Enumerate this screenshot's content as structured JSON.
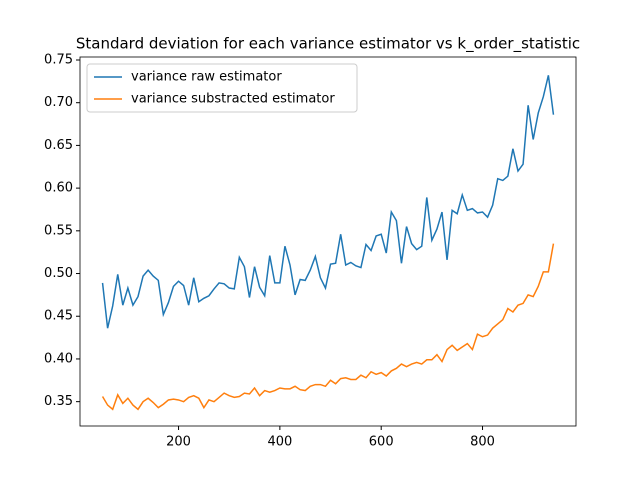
{
  "chart_data": {
    "type": "line",
    "title": "Standard deviation for each variance estimator vs k_order_statistic",
    "x": [
      50,
      60,
      70,
      80,
      90,
      100,
      110,
      120,
      130,
      140,
      150,
      160,
      170,
      180,
      190,
      200,
      210,
      220,
      230,
      240,
      250,
      260,
      270,
      280,
      290,
      300,
      310,
      320,
      330,
      340,
      350,
      360,
      370,
      380,
      390,
      400,
      410,
      420,
      430,
      440,
      450,
      460,
      470,
      480,
      490,
      500,
      510,
      520,
      530,
      540,
      550,
      560,
      570,
      580,
      590,
      600,
      610,
      620,
      630,
      640,
      650,
      660,
      670,
      680,
      690,
      700,
      710,
      720,
      730,
      740,
      750,
      760,
      770,
      780,
      790,
      800,
      810,
      820,
      830,
      840,
      850,
      860,
      870,
      880,
      890,
      900,
      910,
      920,
      930,
      940
    ],
    "series": [
      {
        "name": "variance raw estimator",
        "color": "#1f77b4",
        "values": [
          0.489,
          0.436,
          0.462,
          0.499,
          0.463,
          0.483,
          0.463,
          0.473,
          0.497,
          0.504,
          0.497,
          0.492,
          0.452,
          0.466,
          0.485,
          0.491,
          0.486,
          0.463,
          0.495,
          0.467,
          0.471,
          0.474,
          0.482,
          0.489,
          0.488,
          0.483,
          0.482,
          0.519,
          0.508,
          0.472,
          0.508,
          0.484,
          0.474,
          0.521,
          0.489,
          0.489,
          0.532,
          0.51,
          0.475,
          0.493,
          0.492,
          0.504,
          0.52,
          0.495,
          0.483,
          0.511,
          0.512,
          0.546,
          0.51,
          0.513,
          0.509,
          0.507,
          0.534,
          0.527,
          0.544,
          0.546,
          0.524,
          0.572,
          0.562,
          0.512,
          0.555,
          0.535,
          0.528,
          0.532,
          0.589,
          0.539,
          0.552,
          0.572,
          0.516,
          0.574,
          0.57,
          0.592,
          0.574,
          0.576,
          0.571,
          0.572,
          0.566,
          0.58,
          0.611,
          0.609,
          0.614,
          0.646,
          0.62,
          0.628,
          0.697,
          0.657,
          0.688,
          0.707,
          0.732,
          0.686
        ]
      },
      {
        "name": "variance substracted estimator",
        "color": "#ff7f0e",
        "values": [
          0.356,
          0.346,
          0.341,
          0.358,
          0.348,
          0.354,
          0.346,
          0.341,
          0.35,
          0.354,
          0.349,
          0.343,
          0.347,
          0.352,
          0.353,
          0.352,
          0.35,
          0.355,
          0.357,
          0.354,
          0.343,
          0.352,
          0.35,
          0.355,
          0.36,
          0.357,
          0.355,
          0.356,
          0.36,
          0.359,
          0.366,
          0.357,
          0.363,
          0.361,
          0.363,
          0.366,
          0.365,
          0.365,
          0.368,
          0.364,
          0.363,
          0.368,
          0.37,
          0.37,
          0.368,
          0.375,
          0.371,
          0.377,
          0.378,
          0.376,
          0.376,
          0.381,
          0.378,
          0.385,
          0.382,
          0.384,
          0.38,
          0.386,
          0.389,
          0.394,
          0.391,
          0.394,
          0.396,
          0.394,
          0.399,
          0.399,
          0.405,
          0.397,
          0.411,
          0.416,
          0.41,
          0.414,
          0.418,
          0.411,
          0.429,
          0.426,
          0.428,
          0.436,
          0.441,
          0.446,
          0.459,
          0.455,
          0.463,
          0.465,
          0.475,
          0.473,
          0.485,
          0.502,
          0.502,
          0.535
        ]
      }
    ],
    "xlim": [
      5.5,
      984.5
    ],
    "xticks": [
      200,
      400,
      600,
      800
    ],
    "ylim": [
      0.3215,
      0.7535
    ],
    "yticks": [
      0.35,
      {
        "value": 0.4,
        "label": "0.40"
      },
      0.45,
      {
        "value": 0.5,
        "label": "0.50"
      },
      0.55,
      {
        "value": 0.6,
        "label": "0.60"
      },
      0.65,
      {
        "value": 0.7,
        "label": "0.70"
      },
      0.75
    ],
    "legend": "upper left"
  }
}
